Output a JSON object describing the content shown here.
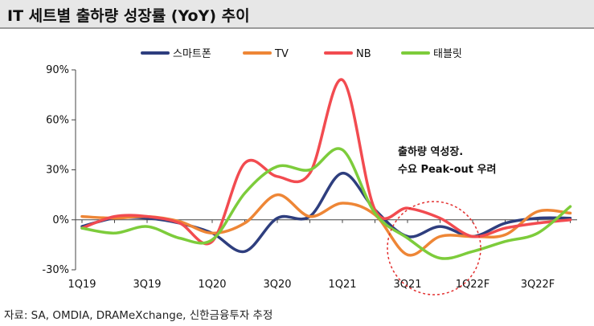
{
  "page": {
    "title": "IT 세트별 출하량 성장률 (YoY) 추이",
    "source": "자료: SA, OMDIA, DRAMeXchange, 신한금융투자 추정"
  },
  "chart_data": {
    "type": "line",
    "title": "",
    "xlabel": "",
    "ylabel": "",
    "ylim": [
      -30,
      90
    ],
    "yticks": [
      -30,
      0,
      30,
      60,
      90
    ],
    "ytick_labels": [
      "-30%",
      "0%",
      "30%",
      "60%",
      "90%"
    ],
    "categories": [
      "1Q19",
      "2Q19",
      "3Q19",
      "4Q19",
      "1Q20",
      "2Q20",
      "3Q20",
      "4Q20",
      "1Q21",
      "2Q21",
      "3Q21",
      "4Q21",
      "1Q22F",
      "2Q22F",
      "3Q22F",
      "4Q22F"
    ],
    "xtick_labels": [
      "1Q19",
      "3Q19",
      "1Q20",
      "3Q20",
      "1Q21",
      "3Q21",
      "1Q22F",
      "3Q22F"
    ],
    "grid": false,
    "legend_position": "top",
    "series": [
      {
        "name": "스마트폰",
        "color": "#2e3e7e",
        "values": [
          -4,
          1,
          1,
          -2,
          -8,
          -19,
          1,
          2,
          28,
          6,
          -10,
          -4,
          -10,
          -2,
          1,
          1
        ]
      },
      {
        "name": "TV",
        "color": "#ee8636",
        "values": [
          2,
          1,
          2,
          -1,
          -8,
          -2,
          15,
          2,
          10,
          3,
          -21,
          -10,
          -10,
          -9,
          5,
          4
        ]
      },
      {
        "name": "NB",
        "color": "#f24b50",
        "values": [
          -5,
          2,
          2,
          -2,
          -13,
          34,
          26,
          28,
          84,
          6,
          7,
          1,
          -10,
          -5,
          -2,
          0
        ]
      },
      {
        "name": "태블릿",
        "color": "#7dcc3b",
        "values": [
          -5,
          -8,
          -4,
          -11,
          -12,
          16,
          32,
          30,
          42,
          4,
          -11,
          -23,
          -19,
          -13,
          -8,
          8
        ]
      }
    ],
    "annotation": {
      "lines": [
        "출하량 역성장.",
        "수요 Peak-out 우려"
      ],
      "color": "#e33030"
    }
  }
}
